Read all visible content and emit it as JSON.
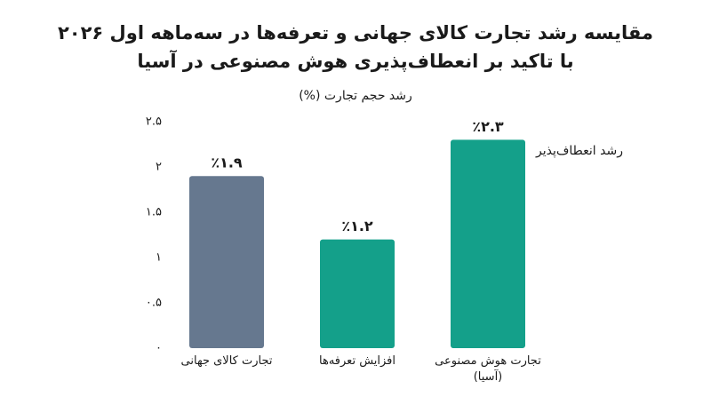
{
  "chart_data": {
    "type": "bar",
    "title": "مقایسه رشد تجارت کالای جهانی و تعرفه‌ها در سه‌ماهه اول ۲۰۲۶",
    "subtitle": "با تاکید بر انعطاف‌پذیری هوش مصنوعی در آسیا",
    "y_label": "رشد حجم تجارت (%)",
    "categories": [
      "تجارت کالای جهانی",
      "افزایش تعرفه‌ها",
      "تجارت هوش مصنوعی (آسیا)"
    ],
    "values": [
      1.9,
      1.2,
      2.3
    ],
    "value_labels": [
      "٪۱.۹",
      "٪۱.۲",
      "٪۲.۳"
    ],
    "colors": [
      "#66788f",
      "#14a08a",
      "#14a08a"
    ],
    "annotation": "رشد انعطاف‌پذیر",
    "ylim": [
      0,
      2.5
    ],
    "yticks": [
      {
        "value": 0,
        "label": "۰"
      },
      {
        "value": 0.5,
        "label": "۰.۵"
      },
      {
        "value": 1,
        "label": "۱"
      },
      {
        "value": 1.5,
        "label": "۱.۵"
      },
      {
        "value": 2,
        "label": "۲"
      },
      {
        "value": 2.5,
        "label": "۲.۵"
      }
    ],
    "grid": false
  }
}
